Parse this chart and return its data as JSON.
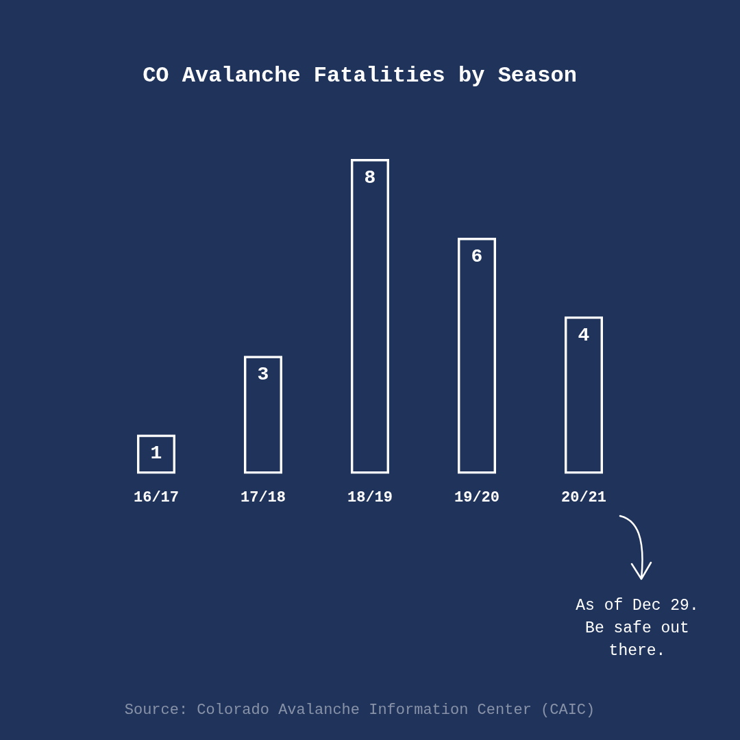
{
  "chart_data": {
    "type": "bar",
    "title": "CO Avalanche Fatalities by Season",
    "categories": [
      "16/17",
      "17/18",
      "18/19",
      "19/20",
      "20/21"
    ],
    "values": [
      1,
      3,
      8,
      6,
      4
    ],
    "color": "#ffffff",
    "data_labels": true,
    "annotations": [
      "As of Dec 29. Be safe out there.",
      "Source: Colorado Avalanche Information Center (CAIC)"
    ]
  }
}
